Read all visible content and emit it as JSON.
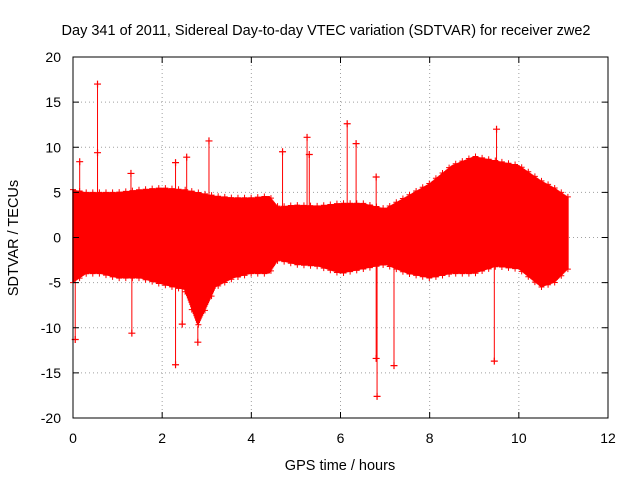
{
  "chart_data": {
    "type": "scatter",
    "title": "Day 341 of 2011, Sidereal Day-to-day VTEC variation (SDTVAR) for receiver zwe2",
    "xlabel": "GPS time / hours",
    "ylabel": "SDTVAR / TECUs",
    "xlim": [
      0,
      12
    ],
    "ylim": [
      -20,
      20
    ],
    "xticks": [
      0,
      2,
      4,
      6,
      8,
      10,
      12
    ],
    "yticks": [
      -20,
      -15,
      -10,
      -5,
      0,
      5,
      10,
      15,
      20
    ],
    "grid": true,
    "marker": "+",
    "color": "#ff0000",
    "series": [
      {
        "name": "SDTVAR",
        "envelope": {
          "x": [
            0.0,
            0.3,
            0.6,
            1.0,
            1.5,
            2.0,
            2.5,
            2.8,
            3.2,
            3.6,
            4.0,
            4.4,
            4.6,
            5.0,
            5.5,
            6.0,
            6.5,
            7.0,
            7.5,
            8.0,
            8.5,
            9.0,
            9.5,
            10.0,
            10.5,
            10.8,
            11.1
          ],
          "upper": [
            5.3,
            5.0,
            5.0,
            5.0,
            5.3,
            5.5,
            5.3,
            5.0,
            4.6,
            4.4,
            4.4,
            4.6,
            3.4,
            3.6,
            3.5,
            3.8,
            3.8,
            3.2,
            4.6,
            6.0,
            8.0,
            9.0,
            8.5,
            8.0,
            6.3,
            5.5,
            4.5
          ],
          "lower": [
            -5.0,
            -4.0,
            -4.0,
            -4.5,
            -4.5,
            -5.2,
            -5.8,
            -9.8,
            -5.5,
            -4.5,
            -4.0,
            -4.0,
            -2.5,
            -3.0,
            -3.2,
            -4.0,
            -3.5,
            -3.0,
            -4.0,
            -4.5,
            -4.0,
            -4.0,
            -3.2,
            -3.5,
            -5.5,
            -5.0,
            -3.5
          ]
        },
        "outliers": [
          {
            "x": 0.05,
            "y": -11.3
          },
          {
            "x": 0.15,
            "y": 8.4
          },
          {
            "x": 0.55,
            "y": 17.0
          },
          {
            "x": 0.55,
            "y": 9.4
          },
          {
            "x": 1.3,
            "y": 7.1
          },
          {
            "x": 1.32,
            "y": -10.6
          },
          {
            "x": 2.3,
            "y": 8.3
          },
          {
            "x": 2.3,
            "y": -14.1
          },
          {
            "x": 2.45,
            "y": -9.6
          },
          {
            "x": 2.55,
            "y": 8.9
          },
          {
            "x": 2.8,
            "y": -11.6
          },
          {
            "x": 3.05,
            "y": 10.7
          },
          {
            "x": 4.7,
            "y": 9.5
          },
          {
            "x": 5.25,
            "y": 11.1
          },
          {
            "x": 5.3,
            "y": 9.2
          },
          {
            "x": 6.15,
            "y": 12.6
          },
          {
            "x": 6.35,
            "y": 10.4
          },
          {
            "x": 6.8,
            "y": 6.7
          },
          {
            "x": 6.8,
            "y": -13.4
          },
          {
            "x": 6.82,
            "y": -17.6
          },
          {
            "x": 7.2,
            "y": -14.2
          },
          {
            "x": 9.45,
            "y": -13.7
          },
          {
            "x": 9.5,
            "y": 12.0
          },
          {
            "x": 10.0,
            "y": 7.3
          }
        ]
      }
    ]
  }
}
